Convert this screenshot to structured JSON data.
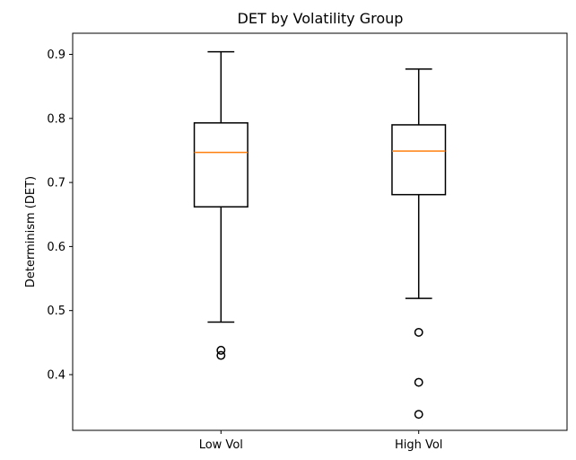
{
  "chart_data": {
    "type": "box",
    "title": "DET by Volatility Group",
    "xlabel": "",
    "ylabel": "Determinism (DET)",
    "categories": [
      "Low Vol",
      "High Vol"
    ],
    "y_ticks": [
      0.4,
      0.5,
      0.6,
      0.7,
      0.8,
      0.9
    ],
    "ylim": [
      0.313,
      0.933
    ],
    "grid": false,
    "boxes": [
      {
        "category": "Low Vol",
        "whisker_low": 0.482,
        "q1": 0.662,
        "median": 0.747,
        "q3": 0.793,
        "whisker_high": 0.904,
        "outliers": [
          0.438,
          0.43
        ]
      },
      {
        "category": "High Vol",
        "whisker_low": 0.519,
        "q1": 0.681,
        "median": 0.749,
        "q3": 0.79,
        "whisker_high": 0.877,
        "outliers": [
          0.466,
          0.388,
          0.338
        ]
      }
    ],
    "colors": {
      "box": "#000000",
      "median": "#ff7f0e",
      "outlier": "#000000"
    }
  }
}
